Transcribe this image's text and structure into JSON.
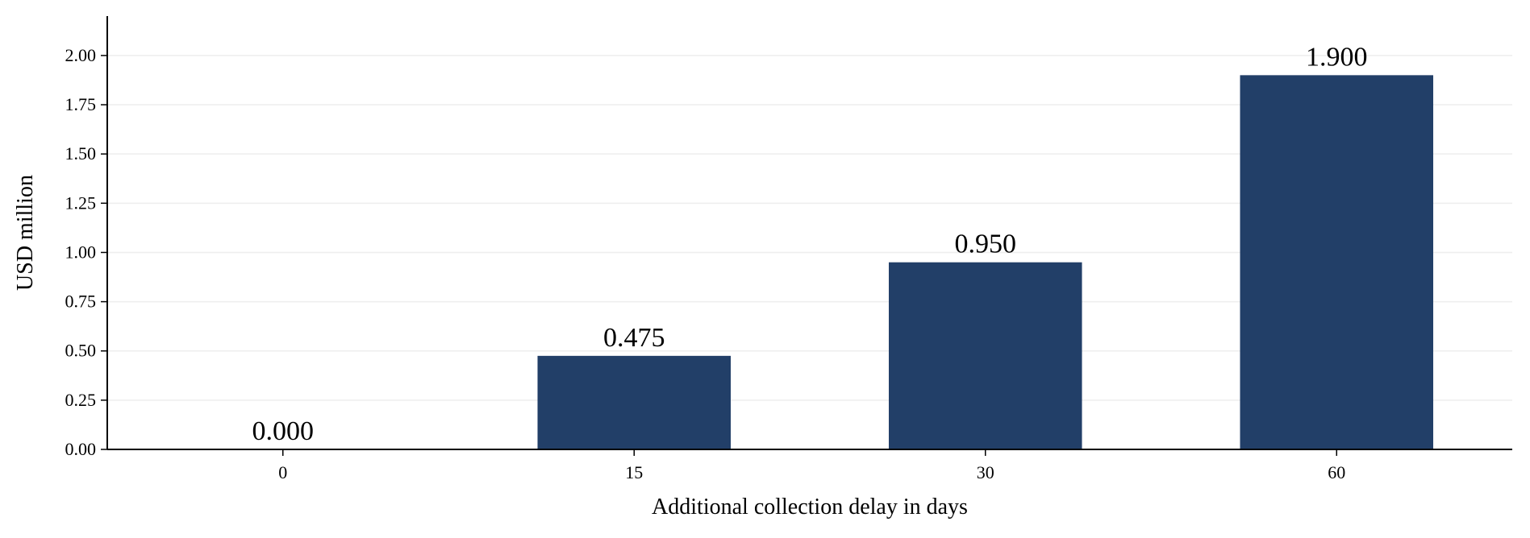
{
  "chart_data": {
    "type": "bar",
    "title": "",
    "xlabel": "Additional collection delay in days",
    "ylabel": "USD million",
    "categories": [
      "0",
      "15",
      "30",
      "60"
    ],
    "values": [
      0.0,
      0.475,
      0.95,
      1.9
    ],
    "value_labels": [
      "0.000",
      "0.475",
      "0.950",
      "1.900"
    ],
    "ylim": [
      0,
      2.2
    ],
    "yticks": [
      0.0,
      0.25,
      0.5,
      0.75,
      1.0,
      1.25,
      1.5,
      1.75,
      2.0
    ],
    "ytick_labels": [
      "0.00",
      "0.25",
      "0.50",
      "0.75",
      "1.00",
      "1.25",
      "1.50",
      "1.75",
      "2.00"
    ],
    "grid": "horizontal",
    "legend": "none",
    "colors": {
      "bar": "#223f68",
      "grid": "#eeeeee",
      "axis": "#000000"
    }
  }
}
